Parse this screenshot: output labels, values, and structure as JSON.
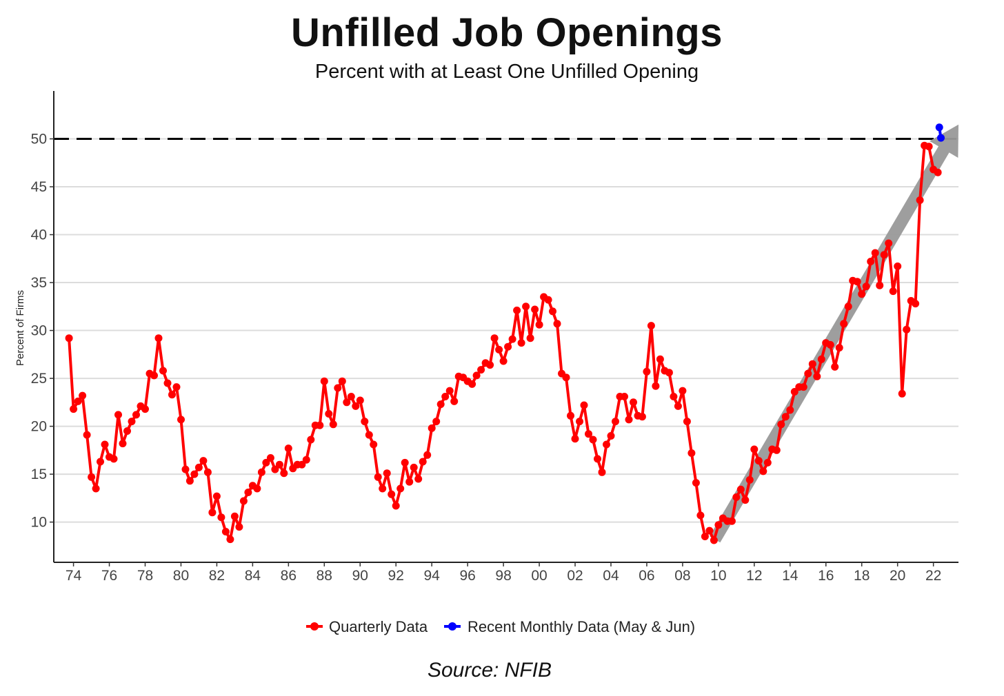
{
  "chart_data": {
    "type": "line",
    "title": "Unfilled Job Openings",
    "subtitle": "Percent with at Least One Unfilled Opening",
    "ylabel": "Percent of Firms",
    "xlabel": "",
    "ylim": [
      5.8,
      55
    ],
    "xlim": [
      1972.9,
      2023.4
    ],
    "yticks": [
      10,
      15,
      20,
      25,
      30,
      35,
      40,
      45,
      50
    ],
    "xticks": [
      {
        "value": 1974,
        "label": "74"
      },
      {
        "value": 1976,
        "label": "76"
      },
      {
        "value": 1978,
        "label": "78"
      },
      {
        "value": 1980,
        "label": "80"
      },
      {
        "value": 1982,
        "label": "82"
      },
      {
        "value": 1984,
        "label": "84"
      },
      {
        "value": 1986,
        "label": "86"
      },
      {
        "value": 1988,
        "label": "88"
      },
      {
        "value": 1990,
        "label": "90"
      },
      {
        "value": 1992,
        "label": "92"
      },
      {
        "value": 1994,
        "label": "94"
      },
      {
        "value": 1996,
        "label": "96"
      },
      {
        "value": 1998,
        "label": "98"
      },
      {
        "value": 2000,
        "label": "00"
      },
      {
        "value": 2002,
        "label": "02"
      },
      {
        "value": 2004,
        "label": "04"
      },
      {
        "value": 2006,
        "label": "06"
      },
      {
        "value": 2008,
        "label": "08"
      },
      {
        "value": 2010,
        "label": "10"
      },
      {
        "value": 2012,
        "label": "12"
      },
      {
        "value": 2014,
        "label": "14"
      },
      {
        "value": 2016,
        "label": "16"
      },
      {
        "value": 2018,
        "label": "18"
      },
      {
        "value": 2020,
        "label": "20"
      },
      {
        "value": 2022,
        "label": "22"
      }
    ],
    "grid": true,
    "reference_line": {
      "y": 50,
      "style": "dashed",
      "color": "#000000"
    },
    "trend_arrow": {
      "from": [
        2009.8,
        8.2
      ],
      "to": [
        2023.4,
        51.5
      ],
      "color": "#999999"
    },
    "legend": {
      "placement": "bottom"
    },
    "series": [
      {
        "name": "Quarterly Data",
        "color": "#ff0000",
        "x": [
          1973.75,
          1974.0,
          1974.25,
          1974.5,
          1974.75,
          1975.0,
          1975.25,
          1975.5,
          1975.75,
          1976.0,
          1976.25,
          1976.5,
          1976.75,
          1977.0,
          1977.25,
          1977.5,
          1977.75,
          1978.0,
          1978.25,
          1978.5,
          1978.75,
          1979.0,
          1979.25,
          1979.5,
          1979.75,
          1980.0,
          1980.25,
          1980.5,
          1980.75,
          1981.0,
          1981.25,
          1981.5,
          1981.75,
          1982.0,
          1982.25,
          1982.5,
          1982.75,
          1983.0,
          1983.25,
          1983.5,
          1983.75,
          1984.0,
          1984.25,
          1984.5,
          1984.75,
          1985.0,
          1985.25,
          1985.5,
          1985.75,
          1986.0,
          1986.25,
          1986.5,
          1986.75,
          1987.0,
          1987.25,
          1987.5,
          1987.75,
          1988.0,
          1988.25,
          1988.5,
          1988.75,
          1989.0,
          1989.25,
          1989.5,
          1989.75,
          1990.0,
          1990.25,
          1990.5,
          1990.75,
          1991.0,
          1991.25,
          1991.5,
          1991.75,
          1992.0,
          1992.25,
          1992.5,
          1992.75,
          1993.0,
          1993.25,
          1993.5,
          1993.75,
          1994.0,
          1994.25,
          1994.5,
          1994.75,
          1995.0,
          1995.25,
          1995.5,
          1995.75,
          1996.0,
          1996.25,
          1996.5,
          1996.75,
          1997.0,
          1997.25,
          1997.5,
          1997.75,
          1998.0,
          1998.25,
          1998.5,
          1998.75,
          1999.0,
          1999.25,
          1999.5,
          1999.75,
          2000.0,
          2000.25,
          2000.5,
          2000.75,
          2001.0,
          2001.25,
          2001.5,
          2001.75,
          2002.0,
          2002.25,
          2002.5,
          2002.75,
          2003.0,
          2003.25,
          2003.5,
          2003.75,
          2004.0,
          2004.25,
          2004.5,
          2004.75,
          2005.0,
          2005.25,
          2005.5,
          2005.75,
          2006.0,
          2006.25,
          2006.5,
          2006.75,
          2007.0,
          2007.25,
          2007.5,
          2007.75,
          2008.0,
          2008.25,
          2008.5,
          2008.75,
          2009.0,
          2009.25,
          2009.5,
          2009.75,
          2010.0,
          2010.25,
          2010.5,
          2010.75,
          2011.0,
          2011.25,
          2011.5,
          2011.75,
          2012.0,
          2012.25,
          2012.5,
          2012.75,
          2013.0,
          2013.25,
          2013.5,
          2013.75,
          2014.0,
          2014.25,
          2014.5,
          2014.75,
          2015.0,
          2015.25,
          2015.5,
          2015.75,
          2016.0,
          2016.25,
          2016.5,
          2016.75,
          2017.0,
          2017.25,
          2017.5,
          2017.75,
          2018.0,
          2018.25,
          2018.5,
          2018.75,
          2019.0,
          2019.25,
          2019.5,
          2019.75,
          2020.0,
          2020.25,
          2020.5,
          2020.75,
          2021.0,
          2021.25,
          2021.5,
          2021.75,
          2022.0,
          2022.25
        ],
        "values": [
          29.2,
          21.8,
          22.6,
          23.2,
          19.1,
          14.7,
          13.5,
          16.3,
          18.1,
          16.8,
          16.6,
          21.2,
          18.2,
          19.5,
          20.5,
          21.2,
          22.1,
          21.8,
          25.5,
          25.3,
          29.2,
          25.8,
          24.5,
          23.3,
          24.1,
          20.7,
          15.5,
          14.3,
          15.0,
          15.7,
          16.4,
          15.2,
          11.0,
          12.7,
          10.5,
          9.0,
          8.2,
          10.6,
          9.5,
          12.2,
          13.1,
          13.8,
          13.5,
          15.2,
          16.2,
          16.7,
          15.5,
          16.0,
          15.1,
          17.7,
          15.6,
          16.0,
          16.0,
          16.5,
          18.6,
          20.1,
          20.1,
          24.7,
          21.3,
          20.2,
          24.0,
          24.7,
          22.5,
          23.1,
          22.1,
          22.7,
          20.5,
          19.1,
          18.1,
          14.7,
          13.5,
          15.1,
          12.9,
          11.7,
          13.5,
          16.2,
          14.2,
          15.7,
          14.5,
          16.3,
          17.0,
          19.8,
          20.5,
          22.3,
          23.1,
          23.7,
          22.6,
          25.2,
          25.1,
          24.7,
          24.4,
          25.3,
          25.9,
          26.6,
          26.4,
          29.2,
          28.0,
          26.8,
          28.3,
          29.1,
          32.1,
          28.7,
          32.5,
          29.2,
          32.2,
          30.6,
          33.5,
          33.2,
          32.0,
          30.7,
          25.5,
          25.1,
          21.1,
          18.7,
          20.5,
          22.2,
          19.2,
          18.6,
          16.6,
          15.2,
          18.1,
          19.0,
          20.5,
          23.1,
          23.1,
          20.7,
          22.5,
          21.1,
          21.0,
          25.7,
          30.5,
          24.2,
          27.0,
          25.8,
          25.6,
          23.1,
          22.1,
          23.7,
          20.5,
          17.2,
          14.1,
          10.7,
          8.5,
          9.1,
          8.1,
          9.7,
          10.4,
          10.1,
          10.1,
          12.6,
          13.4,
          12.3,
          14.4,
          17.6,
          16.4,
          15.3,
          16.2,
          17.6,
          17.5,
          20.2,
          21.0,
          21.7,
          23.6,
          24.1,
          24.1,
          25.5,
          26.5,
          25.2,
          27.0,
          28.7,
          28.5,
          26.2,
          28.2,
          30.7,
          32.5,
          35.2,
          35.1,
          33.8,
          34.6,
          37.2,
          38.1,
          34.7,
          37.9,
          39.1,
          34.1,
          36.7,
          23.4,
          30.1,
          33.1,
          32.8,
          43.6,
          49.3,
          49.2,
          46.8,
          46.5
        ]
      },
      {
        "name": "Recent Monthly Data (May & Jun)",
        "color": "#0000ff",
        "x": [
          2022.33,
          2022.42
        ],
        "values": [
          51.2,
          50.1
        ]
      }
    ]
  },
  "source": "Source: NFIB"
}
